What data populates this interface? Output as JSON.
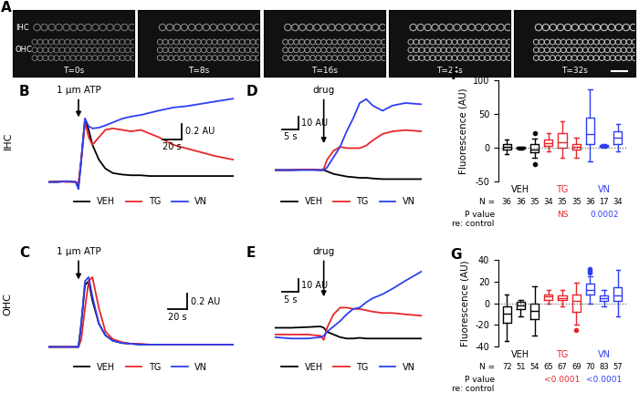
{
  "chart_data": [
    {
      "type": "image",
      "label": "A",
      "frames": [
        "T=0s",
        "T=8s",
        "T=16s",
        "T=24s",
        "T=32s"
      ],
      "rows": [
        "IHC",
        "OHC"
      ]
    },
    {
      "type": "line",
      "label": "B",
      "row_label": "IHC",
      "tick_labels": false,
      "legend": "upper center",
      "xlim": [
        0,
        200
      ],
      "ylim": [
        -0.1,
        1.2
      ],
      "annotation": {
        "text": "1 μm ATP",
        "x": 33
      },
      "scale_bar": {
        "x": 20,
        "x_label": "20 s",
        "y": 0.2,
        "y_label": "0.2 AU"
      },
      "x": [
        0,
        10,
        20,
        30,
        33,
        36,
        40,
        44,
        48,
        55,
        62,
        70,
        80,
        90,
        100,
        110,
        120,
        135,
        150,
        165,
        180,
        200
      ],
      "series": [
        {
          "name": "VEH",
          "color": "#000000",
          "values": [
            0,
            0,
            0.01,
            0,
            -0.05,
            0.3,
            0.85,
            0.7,
            0.5,
            0.3,
            0.18,
            0.12,
            0.1,
            0.09,
            0.09,
            0.08,
            0.08,
            0.08,
            0.08,
            0.08,
            0.08,
            0.08
          ]
        },
        {
          "name": "TG",
          "color": "#e8262b",
          "values": [
            0,
            0.01,
            0,
            0,
            -0.02,
            0.3,
            0.8,
            0.6,
            0.5,
            0.6,
            0.7,
            0.72,
            0.7,
            0.68,
            0.7,
            0.65,
            0.6,
            0.5,
            0.45,
            0.4,
            0.35,
            0.3
          ]
        },
        {
          "name": "VN",
          "color": "#2e3ff0",
          "values": [
            0,
            0,
            0.01,
            0,
            -0.1,
            0.3,
            0.85,
            0.75,
            0.72,
            0.73,
            0.76,
            0.8,
            0.85,
            0.88,
            0.9,
            0.93,
            0.96,
            1.0,
            1.02,
            1.05,
            1.08,
            1.12
          ]
        }
      ]
    },
    {
      "type": "line",
      "label": "C",
      "row_label": "OHC",
      "tick_labels": false,
      "legend": "upper center",
      "xlim": [
        0,
        200
      ],
      "ylim": [
        -0.1,
        1.2
      ],
      "annotation": {
        "text": "1 μm ATP",
        "x": 33
      },
      "scale_bar": {
        "x": 20,
        "x_label": "20 s",
        "y": 0.2,
        "y_label": "0.2 AU"
      },
      "x": [
        0,
        10,
        20,
        30,
        33,
        36,
        40,
        44,
        48,
        55,
        62,
        70,
        80,
        90,
        100,
        110,
        120,
        135,
        150,
        165,
        180,
        200
      ],
      "series": [
        {
          "name": "VEH",
          "color": "#000000",
          "values": [
            0,
            0,
            0,
            0,
            0,
            0.3,
            0.8,
            0.85,
            0.6,
            0.3,
            0.15,
            0.08,
            0.05,
            0.04,
            0.03,
            0.03,
            0.03,
            0.03,
            0.03,
            0.03,
            0.03,
            0.03
          ]
        },
        {
          "name": "TG",
          "color": "#e8262b",
          "values": [
            0,
            0,
            0,
            0,
            0,
            0.1,
            0.5,
            0.85,
            0.9,
            0.5,
            0.2,
            0.1,
            0.06,
            0.04,
            0.04,
            0.03,
            0.03,
            0.03,
            0.03,
            0.03,
            0.03,
            0.03
          ]
        },
        {
          "name": "VN",
          "color": "#2e3ff0",
          "values": [
            0,
            0,
            0,
            0,
            0,
            0.3,
            0.85,
            0.9,
            0.65,
            0.3,
            0.15,
            0.08,
            0.05,
            0.04,
            0.03,
            0.03,
            0.03,
            0.03,
            0.03,
            0.03,
            0.03,
            0.03
          ]
        }
      ]
    },
    {
      "type": "line",
      "label": "D",
      "tick_labels": false,
      "legend": "upper center",
      "xlim": [
        0,
        45
      ],
      "ylim": [
        -15,
        60
      ],
      "annotation": {
        "text": "drug",
        "x": 15
      },
      "scale_bar": {
        "x": 5,
        "x_label": "5 s",
        "y": 10,
        "y_label": "10 AU"
      },
      "x": [
        0,
        5,
        10,
        14,
        15,
        16,
        18,
        20,
        22,
        24,
        26,
        28,
        30,
        33,
        36,
        40,
        45
      ],
      "series": [
        {
          "name": "VEH",
          "color": "#000000",
          "values": [
            0,
            0,
            0.5,
            0,
            0,
            -1,
            -3,
            -4,
            -5,
            -5.5,
            -6,
            -6,
            -6.5,
            -7,
            -7,
            -7,
            -7
          ]
        },
        {
          "name": "TG",
          "color": "#e8262b",
          "values": [
            0,
            0,
            0.5,
            0,
            1,
            8,
            15,
            18,
            17,
            17,
            17,
            19,
            23,
            28,
            30,
            31,
            30
          ]
        },
        {
          "name": "VN",
          "color": "#2e3ff0",
          "values": [
            0,
            0,
            0,
            0,
            0,
            2,
            10,
            18,
            30,
            40,
            52,
            55,
            50,
            46,
            50,
            52,
            51
          ]
        }
      ]
    },
    {
      "type": "line",
      "label": "E",
      "tick_labels": false,
      "legend": "upper center",
      "xlim": [
        0,
        45
      ],
      "ylim": [
        -15,
        60
      ],
      "annotation": {
        "text": "drug",
        "x": 15
      },
      "scale_bar": {
        "x": 5,
        "x_label": "5 s",
        "y": 10,
        "y_label": "10 AU"
      },
      "x": [
        0,
        5,
        10,
        14,
        15,
        16,
        18,
        20,
        22,
        24,
        26,
        28,
        30,
        33,
        36,
        40,
        45
      ],
      "series": [
        {
          "name": "VEH",
          "color": "#000000",
          "values": [
            5,
            5,
            5.5,
            6,
            5,
            2,
            0,
            -2,
            -3,
            -3,
            -2.5,
            -3,
            -3,
            -3,
            -3,
            -3,
            -3
          ]
        },
        {
          "name": "TG",
          "color": "#e8262b",
          "values": [
            0,
            0,
            0,
            -1,
            -4,
            5,
            15,
            20,
            20,
            19,
            19,
            18,
            17,
            16,
            16,
            15,
            14
          ]
        },
        {
          "name": "VN",
          "color": "#2e3ff0",
          "values": [
            -2,
            -3,
            -3,
            -2,
            -1,
            2,
            6,
            10,
            15,
            19,
            20,
            24,
            27,
            30,
            34,
            40,
            47
          ]
        }
      ]
    },
    {
      "type": "box",
      "label": "F",
      "y_label": "Fluorescence (AU)",
      "ylim": [
        -50,
        100
      ],
      "yticks": [
        -50,
        0,
        50,
        100
      ],
      "reference_line": 0,
      "n_label": "N =",
      "p_label": "P value\nre: control",
      "groups": [
        {
          "name": "VEH",
          "color": "#000000",
          "n": [
            36,
            36,
            35
          ],
          "boxes": [
            {
              "whislo": -10,
              "q1": -2,
              "med": 2,
              "q3": 6,
              "whishi": 12,
              "fliers": []
            },
            {
              "whislo": -3,
              "q1": -1,
              "med": 0,
              "q3": 1,
              "whishi": 2,
              "fliers": []
            },
            {
              "whislo": -15,
              "q1": -7,
              "med": -2,
              "q3": 6,
              "whishi": 13,
              "fliers": [
                -25,
                22
              ]
            }
          ]
        },
        {
          "name": "TG",
          "color": "#e8262b",
          "n": [
            34,
            35,
            35
          ],
          "p_value": "NS",
          "boxes": [
            {
              "whislo": -5,
              "q1": 3,
              "med": 7,
              "q3": 12,
              "whishi": 22,
              "fliers": []
            },
            {
              "whislo": -15,
              "q1": 0,
              "med": 8,
              "q3": 22,
              "whishi": 40,
              "fliers": []
            },
            {
              "whislo": -15,
              "q1": -3,
              "med": 2,
              "q3": 5,
              "whishi": 15,
              "fliers": []
            }
          ]
        },
        {
          "name": "VN",
          "color": "#2e3ff0",
          "n": [
            36,
            17,
            34
          ],
          "p_value": "0.0002",
          "boxes": [
            {
              "whislo": -20,
              "q1": 5,
              "med": 20,
              "q3": 45,
              "whishi": 87,
              "fliers": []
            },
            {
              "whislo": 0,
              "q1": 1,
              "med": 3,
              "q3": 4,
              "whishi": 6,
              "fliers": []
            },
            {
              "whislo": -5,
              "q1": 5,
              "med": 15,
              "q3": 25,
              "whishi": 36,
              "fliers": []
            }
          ]
        }
      ]
    },
    {
      "type": "box",
      "label": "G",
      "y_label": "Fluorescence (AU)",
      "ylim": [
        -40,
        40
      ],
      "yticks": [
        -40,
        -20,
        0,
        20,
        40
      ],
      "reference_line": 0,
      "n_label": "N =",
      "p_label": "P value\nre: control",
      "groups": [
        {
          "name": "VEH",
          "color": "#000000",
          "n": [
            72,
            51,
            54
          ],
          "boxes": [
            {
              "whislo": -35,
              "q1": -18,
              "med": -10,
              "q3": -3,
              "whishi": 8,
              "fliers": []
            },
            {
              "whislo": -12,
              "q1": -5,
              "med": -2,
              "q3": 1,
              "whishi": 3,
              "fliers": []
            },
            {
              "whislo": -30,
              "q1": -15,
              "med": -7,
              "q3": 0,
              "whishi": 16,
              "fliers": []
            }
          ]
        },
        {
          "name": "TG",
          "color": "#e8262b",
          "n": [
            65,
            67,
            69
          ],
          "p_value": "<0.0001",
          "boxes": [
            {
              "whislo": 0,
              "q1": 3,
              "med": 6,
              "q3": 8,
              "whishi": 12,
              "fliers": []
            },
            {
              "whislo": -3,
              "q1": 3,
              "med": 5,
              "q3": 7,
              "whishi": 12,
              "fliers": []
            },
            {
              "whislo": -20,
              "q1": -8,
              "med": 2,
              "q3": 8,
              "whishi": 19,
              "fliers": [
                -25
              ]
            }
          ]
        },
        {
          "name": "VN",
          "color": "#2e3ff0",
          "n": [
            70,
            83,
            57
          ],
          "p_value": "<0.0001",
          "boxes": [
            {
              "whislo": 0,
              "q1": 8,
              "med": 12,
              "q3": 18,
              "whishi": 25,
              "fliers": [
                28,
                30,
                32
              ]
            },
            {
              "whislo": -3,
              "q1": 2,
              "med": 5,
              "q3": 7,
              "whishi": 12,
              "fliers": []
            },
            {
              "whislo": -12,
              "q1": 2,
              "med": 7,
              "q3": 15,
              "whishi": 31,
              "fliers": []
            }
          ]
        }
      ]
    }
  ]
}
